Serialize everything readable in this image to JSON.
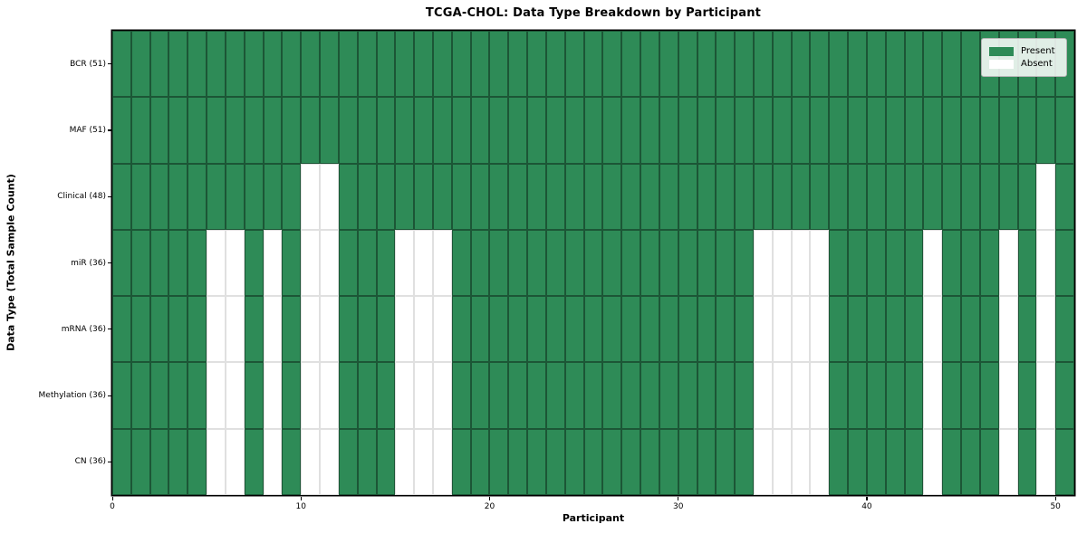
{
  "figure": {
    "background": "#ffffff"
  },
  "chart_data": {
    "type": "heatmap",
    "title": "TCGA-CHOL: Data Type Breakdown by Participant",
    "xlabel": "Participant",
    "ylabel": "Data Type (Total Sample Count)",
    "participants": 51,
    "x_range": [
      0,
      51
    ],
    "x_ticks": [
      "0",
      "10",
      "20",
      "30",
      "40",
      "50"
    ],
    "x_tick_values": [
      0,
      10,
      20,
      30,
      40,
      50
    ],
    "grid": true,
    "colors": {
      "present": "#2e8b57",
      "absent": "#ffffff",
      "cell_edge_on_green": "rgba(0,0,0,0.38)",
      "grid_on_white": "#dedede"
    },
    "rows": [
      {
        "label": "BCR (51)",
        "present_count": 51,
        "absent_participants": []
      },
      {
        "label": "MAF (51)",
        "present_count": 51,
        "absent_participants": []
      },
      {
        "label": "Clinical (48)",
        "present_count": 48,
        "absent_participants": [
          10,
          11,
          49
        ]
      },
      {
        "label": "miR (36)",
        "present_count": 36,
        "absent_participants": [
          5,
          6,
          8,
          10,
          11,
          15,
          16,
          17,
          34,
          35,
          36,
          37,
          43,
          47,
          49
        ]
      },
      {
        "label": "mRNA (36)",
        "present_count": 36,
        "absent_participants": [
          5,
          6,
          8,
          10,
          11,
          15,
          16,
          17,
          34,
          35,
          36,
          37,
          43,
          47,
          49
        ]
      },
      {
        "label": "Methylation (36)",
        "present_count": 36,
        "absent_participants": [
          5,
          6,
          8,
          10,
          11,
          15,
          16,
          17,
          34,
          35,
          36,
          37,
          43,
          47,
          49
        ]
      },
      {
        "label": "CN (36)",
        "present_count": 36,
        "absent_participants": [
          5,
          6,
          8,
          10,
          11,
          15,
          16,
          17,
          34,
          35,
          36,
          37,
          43,
          47,
          49
        ]
      }
    ],
    "legend": {
      "position": "upper right",
      "entries": [
        {
          "label": "Present",
          "color": "#2e8b57"
        },
        {
          "label": "Absent",
          "color": "#ffffff"
        }
      ]
    }
  }
}
